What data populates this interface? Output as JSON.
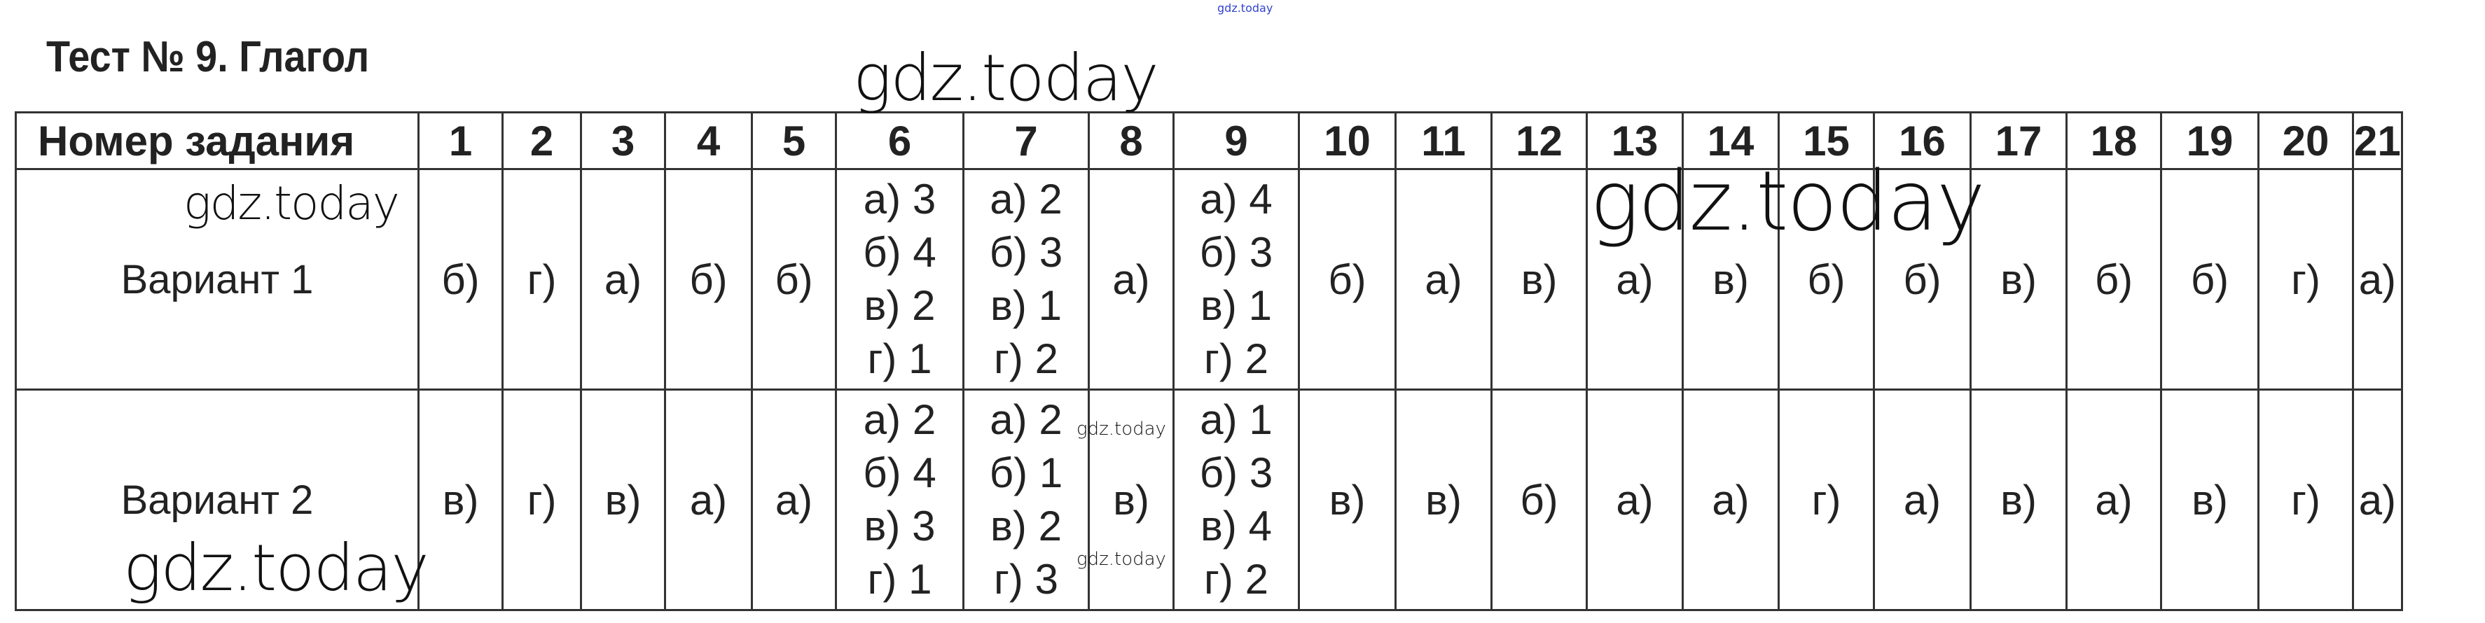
{
  "title": "Тест № 9. Глагол",
  "watermark": "gdz.today",
  "table": {
    "header_label": "Номер задания",
    "columns": [
      "1",
      "2",
      "3",
      "4",
      "5",
      "6",
      "7",
      "8",
      "9",
      "10",
      "11",
      "12",
      "13",
      "14",
      "15",
      "16",
      "17",
      "18",
      "19",
      "20",
      "21"
    ],
    "rows": [
      {
        "label": "Вариант 1",
        "answers": [
          "б)",
          "г)",
          "а)",
          "б)",
          "б)",
          [
            "а) 3",
            "б) 4",
            "в) 2",
            "г) 1"
          ],
          [
            "а) 2",
            "б) 3",
            "в) 1",
            "г) 2"
          ],
          "а)",
          [
            "а) 4",
            "б) 3",
            "в) 1",
            "г) 2"
          ],
          "б)",
          "а)",
          "в)",
          "а)",
          "в)",
          "б)",
          "б)",
          "в)",
          "б)",
          "б)",
          "г)",
          "а)"
        ]
      },
      {
        "label": "Вариант 2",
        "answers": [
          "в)",
          "г)",
          "в)",
          "а)",
          "а)",
          [
            "а) 2",
            "б) 4",
            "в) 3",
            "г) 1"
          ],
          [
            "а) 2",
            "б) 1",
            "в) 2",
            "г) 3"
          ],
          "в)",
          [
            "а) 1",
            "б) 3",
            "в) 4",
            "г) 2"
          ],
          "в)",
          "в)",
          "б)",
          "а)",
          "а)",
          "г)",
          "а)",
          "в)",
          "а)",
          "в)",
          "г)",
          "а)"
        ]
      }
    ]
  }
}
